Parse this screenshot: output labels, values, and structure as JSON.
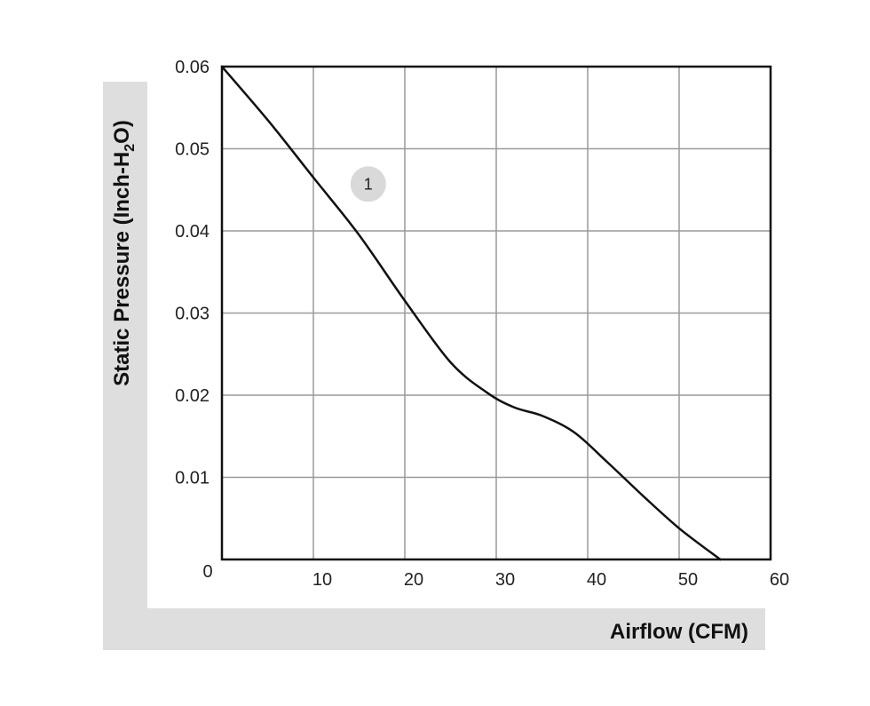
{
  "chart_data": {
    "type": "line",
    "title": "",
    "xlabel": "Airflow (CFM)",
    "ylabel_main": "Static Pressure (Inch-H",
    "ylabel_sub": "2",
    "ylabel_tail": "O)",
    "xlim": [
      0,
      60
    ],
    "ylim": [
      0,
      0.06
    ],
    "grid": true,
    "xticks": [
      {
        "value": 0,
        "label": "0"
      },
      {
        "value": 10,
        "label": "10"
      },
      {
        "value": 20,
        "label": "20"
      },
      {
        "value": 30,
        "label": "30"
      },
      {
        "value": 40,
        "label": "40"
      },
      {
        "value": 50,
        "label": "50"
      },
      {
        "value": 60,
        "label": "60"
      }
    ],
    "yticks": [
      {
        "value": 0.01,
        "label": "0.01"
      },
      {
        "value": 0.02,
        "label": "0.02"
      },
      {
        "value": 0.03,
        "label": "0.03"
      },
      {
        "value": 0.04,
        "label": "0.04"
      },
      {
        "value": 0.05,
        "label": "0.05"
      },
      {
        "value": 0.06,
        "label": "0.06"
      }
    ],
    "series": [
      {
        "label": "1",
        "color": "#111111",
        "points": [
          [
            0,
            0.06
          ],
          [
            5,
            0.0535
          ],
          [
            10,
            0.0465
          ],
          [
            15,
            0.0395
          ],
          [
            20,
            0.0315
          ],
          [
            25,
            0.024
          ],
          [
            29,
            0.0203
          ],
          [
            32,
            0.0185
          ],
          [
            35,
            0.0175
          ],
          [
            38.5,
            0.0155
          ],
          [
            42,
            0.012
          ],
          [
            46,
            0.0078
          ],
          [
            50,
            0.0038
          ],
          [
            54.5,
            0.0
          ]
        ]
      }
    ],
    "annotation": {
      "text": "1",
      "x": 16,
      "y": 0.0457
    }
  },
  "colors": {
    "frame": "#111111",
    "grid": "#9a9a9a",
    "band": "#dedede",
    "badge": "#d9d9d9"
  }
}
